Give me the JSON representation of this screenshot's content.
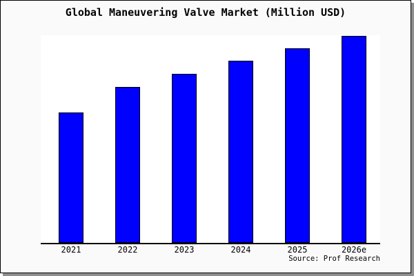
{
  "card": {
    "background": "#fafafa",
    "border_color": "#000000",
    "shadow_color": "#8e8e8e"
  },
  "title": "Global Maneuvering Valve Market (Million USD)",
  "source_note": "Source: Prof Research",
  "chart_data": {
    "type": "bar",
    "title": "Global Maneuvering Valve Market (Million USD)",
    "categories": [
      "2021",
      "2022",
      "2023",
      "2024",
      "2025",
      "2026e"
    ],
    "values": [
      63,
      75.3,
      81.7,
      88,
      94,
      100
    ],
    "value_scale_note": "no y-axis or value labels shown; values estimated as relative bar heights with tallest bar (2026e) = 100",
    "xlabel": "",
    "ylabel": "",
    "ylim": [
      0,
      100
    ],
    "grid": false,
    "legend": false,
    "y_axis_visible": false,
    "x_axis_visible": true,
    "plot_background": "#ffffff",
    "axis_color": "#000000",
    "bar_fill": "#0000ff",
    "bar_border": "#000000"
  }
}
